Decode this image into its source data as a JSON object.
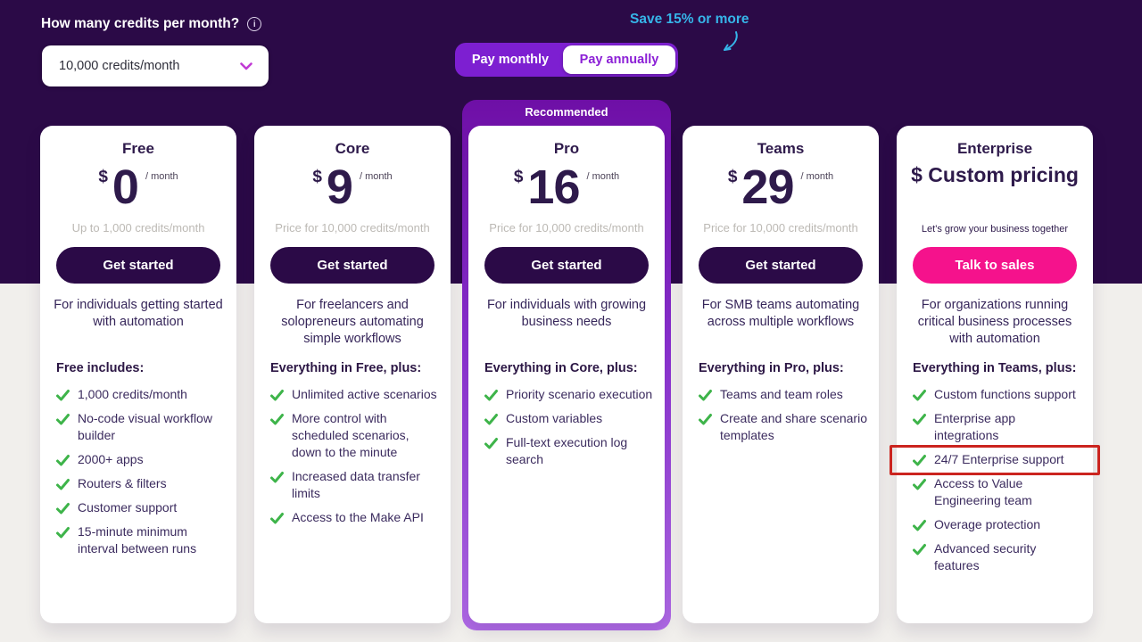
{
  "header": {
    "credits_question": "How many credits per month?",
    "credits_value": "10,000 credits/month",
    "pay_monthly": "Pay monthly",
    "pay_annually": "Pay annually",
    "selected_billing": "Pay annually",
    "save_note": "Save 15% or more"
  },
  "colors": {
    "page_top_bg": "#2b0a47",
    "page_bottom_bg": "#f1efec",
    "accent_purple": "#7d1fd1",
    "toggle_text_purple": "#8b1fd6",
    "cta_dark": "#2b0a47",
    "cta_pink": "#f5128c",
    "check_green": "#3eb44a",
    "save_note_cyan": "#36b5e9",
    "highlight_red": "#cb241f",
    "recommended_gradient_top": "#6e0fa6",
    "recommended_gradient_bottom": "#b06ae6"
  },
  "plans": [
    {
      "name": "Free",
      "currency": "$",
      "amount": "0",
      "period": "/ month",
      "note": "Up to 1,000 credits/month",
      "note_style": "gray",
      "cta": "Get started",
      "cta_style": "dark",
      "description": "For individuals getting started with automation",
      "features_title": "Free includes:",
      "features": [
        "1,000 credits/month",
        "No-code visual workflow builder",
        "2000+ apps",
        "Routers & filters",
        "Customer support",
        "15-minute minimum interval between runs"
      ]
    },
    {
      "name": "Core",
      "currency": "$",
      "amount": "9",
      "period": "/ month",
      "note": "Price for 10,000 credits/month",
      "note_style": "gray",
      "cta": "Get started",
      "cta_style": "dark",
      "description": "For freelancers and solopreneurs automating simple workflows",
      "features_title": "Everything in Free, plus:",
      "features": [
        "Unlimited active scenarios",
        "More control with scheduled scenarios, down to the minute",
        "Increased data transfer limits",
        "Access to the Make API"
      ]
    },
    {
      "name": "Pro",
      "badge": "Recommended",
      "currency": "$",
      "amount": "16",
      "period": "/ month",
      "note": "Price for 10,000 credits/month",
      "note_style": "gray",
      "cta": "Get started",
      "cta_style": "dark",
      "description": "For individuals with growing business needs",
      "features_title": "Everything in Core, plus:",
      "features": [
        "Priority scenario execution",
        "Custom variables",
        "Full-text execution log search"
      ]
    },
    {
      "name": "Teams",
      "currency": "$",
      "amount": "29",
      "period": "/ month",
      "note": "Price for 10,000 credits/month",
      "note_style": "gray",
      "cta": "Get started",
      "cta_style": "dark",
      "description": "For SMB teams automating across multiple workflows",
      "features_title": "Everything in Pro, plus:",
      "features": [
        "Teams and team roles",
        "Create and share scenario templates"
      ]
    },
    {
      "name": "Enterprise",
      "custom_price": "$ Custom pricing",
      "note": "Let's grow your business together",
      "note_style": "dark",
      "cta": "Talk to sales",
      "cta_style": "pink",
      "description": "For organizations running critical business processes with automation",
      "features_title": "Everything in Teams, plus:",
      "features": [
        "Custom functions support",
        "Enterprise app integrations",
        "24/7 Enterprise support",
        "Access to Value Engineering team",
        "Overage protection",
        "Advanced security features"
      ],
      "highlight_feature_index": 2
    }
  ]
}
